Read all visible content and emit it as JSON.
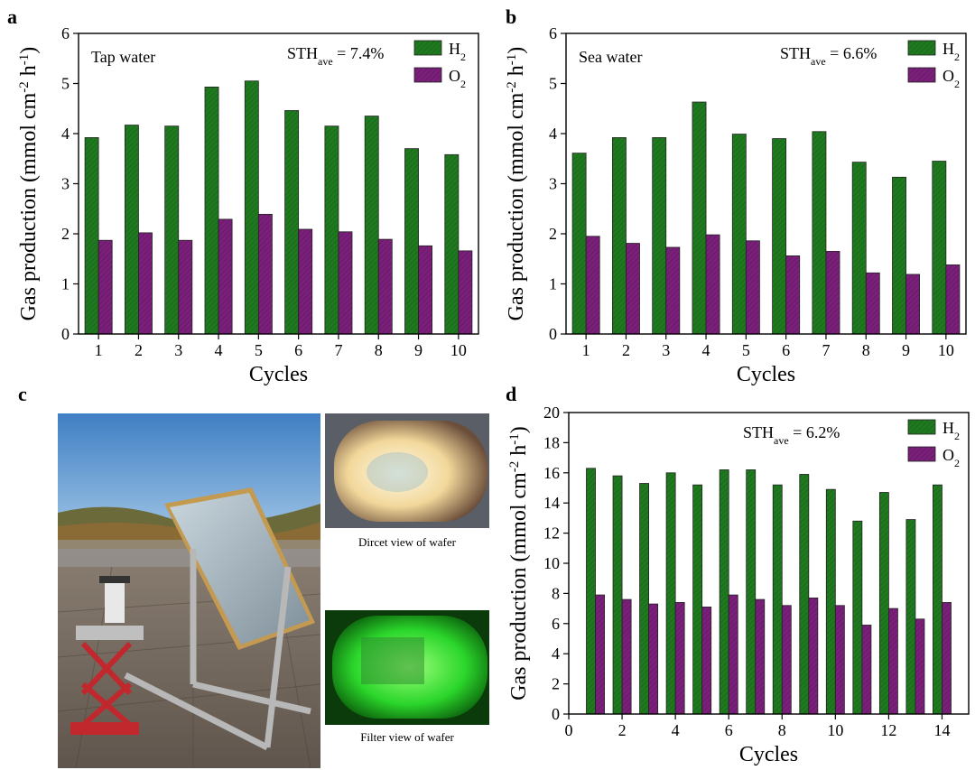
{
  "panels": {
    "a": "a",
    "b": "b",
    "c": "c",
    "d": "d"
  },
  "photos": {
    "direct_caption": "Dircet view of wafer",
    "filter_caption": "Filter view of wafer"
  },
  "colors": {
    "h2": "#1f7a1f",
    "o2": "#7a1f7a"
  },
  "chart_data": [
    {
      "id": "a",
      "type": "bar",
      "ylabel": "Gas production (mmol cm⁻² h⁻¹)",
      "xlabel": "Cycles",
      "annotation": "Tap water",
      "sth_prefix": "STH",
      "sth_sub": "ave",
      "sth_value": " = 7.4%",
      "ylim": [
        0,
        6
      ],
      "yticks": [
        0,
        1,
        2,
        3,
        4,
        5,
        6
      ],
      "xticks": [
        1,
        2,
        3,
        4,
        5,
        6,
        7,
        8,
        9,
        10
      ],
      "legend_position": "top-right",
      "categories": [
        1,
        2,
        3,
        4,
        5,
        6,
        7,
        8,
        9,
        10
      ],
      "series": [
        {
          "name": "H",
          "sub": "2",
          "values": [
            3.92,
            4.17,
            4.15,
            4.93,
            5.05,
            4.46,
            4.15,
            4.35,
            3.7,
            3.58
          ]
        },
        {
          "name": "O",
          "sub": "2",
          "values": [
            1.87,
            2.02,
            1.87,
            2.29,
            2.39,
            2.09,
            2.04,
            1.89,
            1.76,
            1.66
          ]
        }
      ]
    },
    {
      "id": "b",
      "type": "bar",
      "ylabel": "Gas production (mmol cm⁻² h⁻¹)",
      "xlabel": "Cycles",
      "annotation": "Sea water",
      "sth_prefix": "STH",
      "sth_sub": "ave",
      "sth_value": " = 6.6%",
      "ylim": [
        0,
        6
      ],
      "yticks": [
        0,
        1,
        2,
        3,
        4,
        5,
        6
      ],
      "xticks": [
        1,
        2,
        3,
        4,
        5,
        6,
        7,
        8,
        9,
        10
      ],
      "legend_position": "top-right",
      "categories": [
        1,
        2,
        3,
        4,
        5,
        6,
        7,
        8,
        9,
        10
      ],
      "series": [
        {
          "name": "H",
          "sub": "2",
          "values": [
            3.61,
            3.92,
            3.92,
            4.63,
            3.99,
            3.9,
            4.04,
            3.43,
            3.13,
            3.45
          ]
        },
        {
          "name": "O",
          "sub": "2",
          "values": [
            1.95,
            1.81,
            1.73,
            1.98,
            1.86,
            1.56,
            1.65,
            1.22,
            1.19,
            1.38
          ]
        }
      ]
    },
    {
      "id": "d",
      "type": "bar",
      "ylabel": "Gas production (mmol cm⁻² h⁻¹)",
      "xlabel": "Cycles",
      "annotation": "",
      "sth_prefix": "STH",
      "sth_sub": "ave",
      "sth_value": " = 6.2%",
      "ylim": [
        0,
        20
      ],
      "xlim": [
        0,
        15
      ],
      "yticks": [
        0,
        2,
        4,
        6,
        8,
        10,
        12,
        14,
        16,
        18,
        20
      ],
      "xticks": [
        0,
        2,
        4,
        6,
        8,
        10,
        12,
        14
      ],
      "legend_position": "top-right",
      "categories": [
        1,
        2,
        3,
        4,
        5,
        6,
        7,
        8,
        9,
        10,
        11,
        12,
        13,
        14
      ],
      "series": [
        {
          "name": "H",
          "sub": "2",
          "values": [
            16.3,
            15.8,
            15.3,
            16.0,
            15.2,
            16.2,
            16.2,
            15.2,
            15.9,
            14.9,
            12.8,
            14.7,
            12.9,
            15.2
          ]
        },
        {
          "name": "O",
          "sub": "2",
          "values": [
            7.9,
            7.6,
            7.3,
            7.4,
            7.1,
            7.9,
            7.6,
            7.2,
            7.7,
            7.2,
            5.9,
            7.0,
            6.3,
            7.4
          ]
        }
      ]
    }
  ]
}
